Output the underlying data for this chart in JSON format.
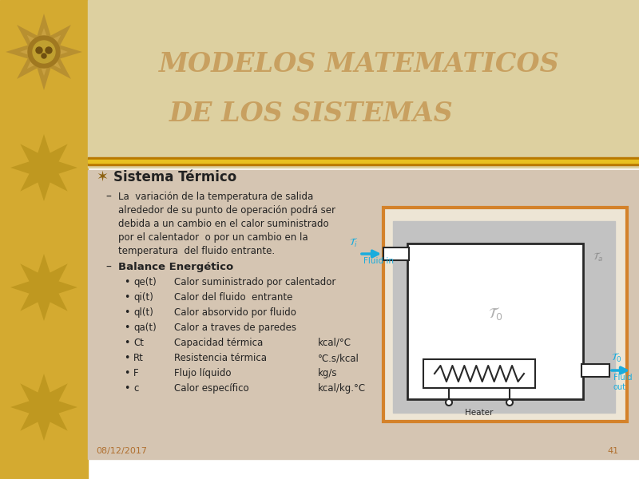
{
  "title_line1": "MODELOS MATEMATICOS",
  "title_line2": "DE LOS SISTEMAS",
  "title_color": "#C8A060",
  "bg_left": "#D4AA30",
  "bg_right_top": "#DED0A8",
  "bg_right_bottom": "#D5C5B0",
  "bar_dark": "#B87800",
  "bar_light": "#E8C020",
  "section_title": "Sistema Térmico",
  "intro_lines": [
    "La  variación de la temperatura de salida",
    "alrededor de su punto de operación podrá ser",
    "debida a un cambio en el calor suministrado",
    "por el calentador  o por un cambio en la",
    "temperatura  del fluido entrante."
  ],
  "subsection": "Balance Energético",
  "items": [
    [
      "qe(t)",
      "Calor suministrado por calentador",
      ""
    ],
    [
      "qi(t)",
      "Calor del fluido  entrante",
      ""
    ],
    [
      "ql(t)",
      "Calor absorvido por fluido",
      ""
    ],
    [
      "qa(t)",
      "Calor a traves de paredes",
      ""
    ],
    [
      "Ct",
      "Capacidad térmica",
      "kcal/°C"
    ],
    [
      "Rt",
      "Resistencia térmica",
      "°C.s/kcal"
    ],
    [
      "F",
      "Flujo líquido",
      "kg/s"
    ],
    [
      "c",
      "Calor específico",
      "kcal/kg.°C"
    ]
  ],
  "footer_date": "08/12/2017",
  "footer_page": "41",
  "diagram_border": "#D4822A",
  "text_color": "#222222",
  "cyan": "#1AACDD",
  "gray_label": "#909090"
}
